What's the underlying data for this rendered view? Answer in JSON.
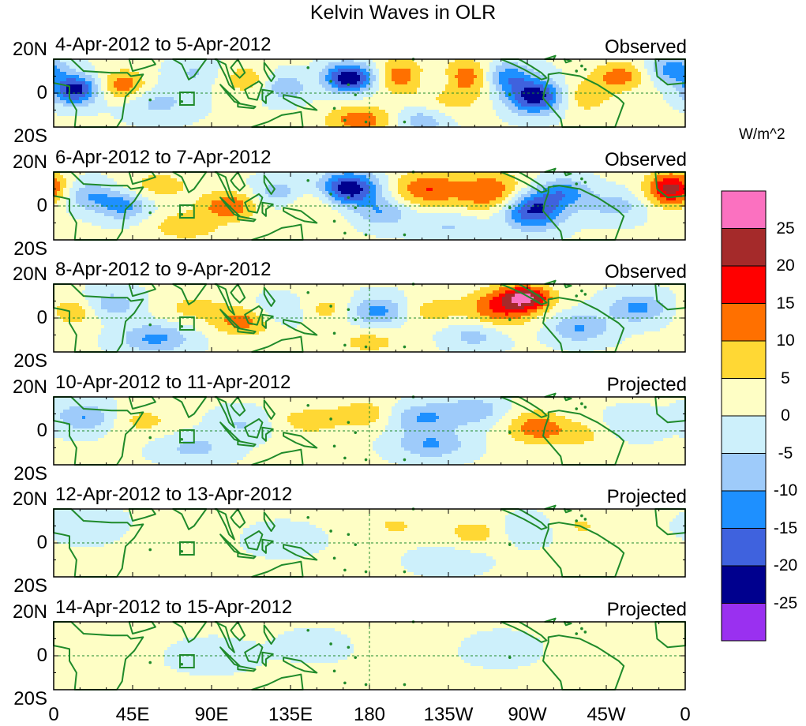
{
  "chart_data": {
    "type": "heatmap",
    "title": "Kelvin Waves in OLR",
    "xlabel": "",
    "ylabel": "",
    "units": "W/m^2",
    "xlim": [
      0,
      360
    ],
    "ylim": [
      -20,
      20
    ],
    "x_tick_labels": [
      "0",
      "45E",
      "90E",
      "135E",
      "180",
      "135W",
      "90W",
      "45W",
      "0"
    ],
    "y_tick_labels": [
      "20N",
      "0",
      "20S"
    ],
    "colorbar": {
      "levels": [
        -25,
        -20,
        -15,
        -10,
        -5,
        0,
        5,
        10,
        15,
        20,
        25
      ],
      "labels": [
        "25",
        "20",
        "15",
        "10",
        "5",
        "0",
        "-5",
        "-10",
        "-15",
        "-20",
        "-25"
      ],
      "colors": [
        "#9a30f0",
        "#00008e",
        "#3f62de",
        "#1e90ff",
        "#9ecbfa",
        "#cdf0fb",
        "#fefec5",
        "#ffd834",
        "#ff7000",
        "#ff0000",
        "#a52a2a",
        "#fb71c0"
      ]
    },
    "panels": [
      {
        "date": "4-Apr-2012 to 5-Apr-2012",
        "status": "Observed",
        "anomalies": [
          {
            "lon": 12,
            "lat": 2,
            "amp": -24,
            "wlon": 9,
            "wlat": 6
          },
          {
            "lon": 40,
            "lat": 5,
            "amp": 13,
            "wlon": 9,
            "wlat": 6
          },
          {
            "lon": 60,
            "lat": -6,
            "amp": -7,
            "wlon": 14,
            "wlat": 7
          },
          {
            "lon": 80,
            "lat": 12,
            "amp": -6,
            "wlon": 10,
            "wlat": 6
          },
          {
            "lon": 110,
            "lat": 8,
            "amp": 8,
            "wlon": 10,
            "wlat": 6
          },
          {
            "lon": 133,
            "lat": 4,
            "amp": -11,
            "wlon": 10,
            "wlat": 6
          },
          {
            "lon": 150,
            "lat": 8,
            "amp": 6,
            "wlon": 10,
            "wlat": 6
          },
          {
            "lon": 168,
            "lat": 9,
            "amp": -27,
            "wlon": 12,
            "wlat": 6
          },
          {
            "lon": 197,
            "lat": 10,
            "amp": 14,
            "wlon": 12,
            "wlat": 7
          },
          {
            "lon": 218,
            "lat": 8,
            "amp": -8,
            "wlon": 10,
            "wlat": 6
          },
          {
            "lon": 235,
            "lat": 10,
            "amp": 14,
            "wlon": 11,
            "wlat": 7
          },
          {
            "lon": 258,
            "lat": 10,
            "amp": -14,
            "wlon": 10,
            "wlat": 6
          },
          {
            "lon": 275,
            "lat": -2,
            "amp": -25,
            "wlon": 12,
            "wlat": 7
          },
          {
            "lon": 300,
            "lat": -2,
            "amp": 9,
            "wlon": 12,
            "wlat": 7
          },
          {
            "lon": 323,
            "lat": 10,
            "amp": 12,
            "wlon": 11,
            "wlat": 6
          },
          {
            "lon": 353,
            "lat": 14,
            "amp": -14,
            "wlon": 10,
            "wlat": 6
          },
          {
            "lon": 175,
            "lat": -16,
            "amp": 13,
            "wlon": 14,
            "wlat": 6
          },
          {
            "lon": 210,
            "lat": -16,
            "amp": -10,
            "wlon": 12,
            "wlat": 6
          },
          {
            "lon": 225,
            "lat": -5,
            "amp": 6,
            "wlon": 15,
            "wlat": 8
          }
        ]
      },
      {
        "date": "6-Apr-2012 to 7-Apr-2012",
        "status": "Observed",
        "anomalies": [
          {
            "lon": 20,
            "lat": 6,
            "amp": -10,
            "wlon": 11,
            "wlat": 6
          },
          {
            "lon": 40,
            "lat": 0,
            "amp": -12,
            "wlon": 10,
            "wlat": 6
          },
          {
            "lon": 60,
            "lat": 12,
            "amp": 7,
            "wlon": 14,
            "wlat": 6
          },
          {
            "lon": 75,
            "lat": -12,
            "amp": 8,
            "wlon": 14,
            "wlat": 6
          },
          {
            "lon": 100,
            "lat": 0,
            "amp": 13,
            "wlon": 12,
            "wlat": 6
          },
          {
            "lon": 128,
            "lat": 8,
            "amp": -9,
            "wlon": 10,
            "wlat": 6
          },
          {
            "lon": 150,
            "lat": 2,
            "amp": 7,
            "wlon": 12,
            "wlat": 8
          },
          {
            "lon": 168,
            "lat": 10,
            "amp": -26,
            "wlon": 12,
            "wlat": 7
          },
          {
            "lon": 188,
            "lat": -4,
            "amp": -10,
            "wlon": 10,
            "wlat": 6
          },
          {
            "lon": 213,
            "lat": 10,
            "amp": 14,
            "wlon": 14,
            "wlat": 7
          },
          {
            "lon": 250,
            "lat": 8,
            "amp": 15,
            "wlon": 14,
            "wlat": 8
          },
          {
            "lon": 273,
            "lat": -2,
            "amp": -23,
            "wlon": 12,
            "wlat": 8
          },
          {
            "lon": 292,
            "lat": 8,
            "amp": -12,
            "wlon": 10,
            "wlat": 6
          },
          {
            "lon": 320,
            "lat": 0,
            "amp": -8,
            "wlon": 12,
            "wlat": 6
          },
          {
            "lon": 352,
            "lat": 10,
            "amp": 22,
            "wlon": 10,
            "wlat": 7
          },
          {
            "lon": 225,
            "lat": -12,
            "amp": -6,
            "wlon": 14,
            "wlat": 6
          }
        ]
      },
      {
        "date": "8-Apr-2012 to 9-Apr-2012",
        "status": "Observed",
        "anomalies": [
          {
            "lon": 12,
            "lat": 4,
            "amp": 9,
            "wlon": 10,
            "wlat": 6
          },
          {
            "lon": 32,
            "lat": 8,
            "amp": -9,
            "wlon": 12,
            "wlat": 6
          },
          {
            "lon": 58,
            "lat": -12,
            "amp": -12,
            "wlon": 14,
            "wlat": 6
          },
          {
            "lon": 80,
            "lat": 6,
            "amp": 6,
            "wlon": 14,
            "wlat": 6
          },
          {
            "lon": 108,
            "lat": -2,
            "amp": 12,
            "wlon": 12,
            "wlat": 6
          },
          {
            "lon": 130,
            "lat": 4,
            "amp": -7,
            "wlon": 12,
            "wlat": 6
          },
          {
            "lon": 155,
            "lat": 5,
            "amp": 7,
            "wlon": 12,
            "wlat": 6
          },
          {
            "lon": 185,
            "lat": 4,
            "amp": -13,
            "wlon": 12,
            "wlat": 6
          },
          {
            "lon": 215,
            "lat": 4,
            "amp": 7,
            "wlon": 12,
            "wlat": 6
          },
          {
            "lon": 255,
            "lat": 6,
            "amp": 15,
            "wlon": 14,
            "wlat": 8
          },
          {
            "lon": 270,
            "lat": 12,
            "amp": 21,
            "wlon": 10,
            "wlat": 5
          },
          {
            "lon": 300,
            "lat": -6,
            "amp": -11,
            "wlon": 12,
            "wlat": 6
          },
          {
            "lon": 333,
            "lat": 6,
            "amp": -12,
            "wlon": 12,
            "wlat": 6
          },
          {
            "lon": 180,
            "lat": -14,
            "amp": 6,
            "wlon": 15,
            "wlat": 6
          },
          {
            "lon": 240,
            "lat": -10,
            "amp": -8,
            "wlon": 12,
            "wlat": 6
          }
        ]
      },
      {
        "date": "10-Apr-2012 to 11-Apr-2012",
        "status": "Projected",
        "anomalies": [
          {
            "lon": 18,
            "lat": 8,
            "amp": -11,
            "wlon": 12,
            "wlat": 6
          },
          {
            "lon": 50,
            "lat": 6,
            "amp": 6,
            "wlon": 14,
            "wlat": 6
          },
          {
            "lon": 80,
            "lat": -10,
            "amp": -7,
            "wlon": 14,
            "wlat": 6
          },
          {
            "lon": 108,
            "lat": 4,
            "amp": -6,
            "wlon": 12,
            "wlat": 6
          },
          {
            "lon": 145,
            "lat": 6,
            "amp": 7,
            "wlon": 14,
            "wlat": 6
          },
          {
            "lon": 178,
            "lat": 10,
            "amp": 8,
            "wlon": 12,
            "wlat": 6
          },
          {
            "lon": 210,
            "lat": 8,
            "amp": -11,
            "wlon": 14,
            "wlat": 6
          },
          {
            "lon": 240,
            "lat": 12,
            "amp": -9,
            "wlon": 12,
            "wlat": 6
          },
          {
            "lon": 215,
            "lat": -8,
            "amp": -11,
            "wlon": 14,
            "wlat": 6
          },
          {
            "lon": 275,
            "lat": 2,
            "amp": 12,
            "wlon": 12,
            "wlat": 7
          },
          {
            "lon": 300,
            "lat": -2,
            "amp": 6,
            "wlon": 12,
            "wlat": 6
          },
          {
            "lon": 330,
            "lat": 4,
            "amp": -5,
            "wlon": 12,
            "wlat": 6
          }
        ]
      },
      {
        "date": "12-Apr-2012 to 13-Apr-2012",
        "status": "Projected",
        "anomalies": [
          {
            "lon": 20,
            "lat": 10,
            "amp": -5,
            "wlon": 14,
            "wlat": 6
          },
          {
            "lon": 70,
            "lat": 4,
            "amp": 4,
            "wlon": 16,
            "wlat": 6
          },
          {
            "lon": 130,
            "lat": 2,
            "amp": -4,
            "wlon": 14,
            "wlat": 6
          },
          {
            "lon": 195,
            "lat": 10,
            "amp": 5,
            "wlon": 12,
            "wlat": 6
          },
          {
            "lon": 240,
            "lat": 6,
            "amp": 7,
            "wlon": 12,
            "wlat": 6
          },
          {
            "lon": 270,
            "lat": 8,
            "amp": -5,
            "wlon": 12,
            "wlat": 6
          },
          {
            "lon": 300,
            "lat": 10,
            "amp": 5,
            "wlon": 12,
            "wlat": 6
          },
          {
            "lon": 225,
            "lat": -10,
            "amp": -4,
            "wlon": 14,
            "wlat": 6
          }
        ]
      },
      {
        "date": "14-Apr-2012 to 15-Apr-2012",
        "status": "Projected",
        "anomalies": [
          {
            "lon": 30,
            "lat": 5,
            "amp": 3,
            "wlon": 16,
            "wlat": 7
          },
          {
            "lon": 90,
            "lat": 0,
            "amp": -4,
            "wlon": 16,
            "wlat": 6
          },
          {
            "lon": 150,
            "lat": 6,
            "amp": -3,
            "wlon": 14,
            "wlat": 6
          },
          {
            "lon": 200,
            "lat": 10,
            "amp": 3,
            "wlon": 16,
            "wlat": 6
          },
          {
            "lon": 255,
            "lat": 4,
            "amp": -4,
            "wlon": 14,
            "wlat": 6
          },
          {
            "lon": 310,
            "lat": 6,
            "amp": 3,
            "wlon": 14,
            "wlat": 6
          }
        ]
      }
    ]
  }
}
